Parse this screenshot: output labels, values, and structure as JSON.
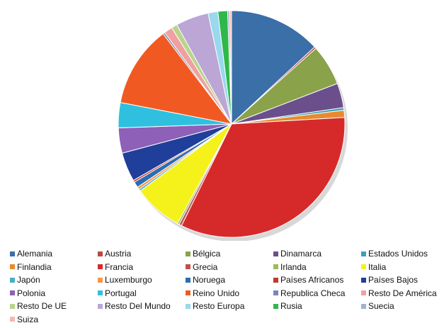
{
  "chart_data": {
    "type": "pie",
    "start_angle_deg": 0,
    "direction": "clockwise",
    "legend_position": "bottom",
    "slices": [
      {
        "label": "Alemania",
        "value": 14.2,
        "color": "#3a6fa8"
      },
      {
        "label": "Austria",
        "value": 0.3,
        "color": "#b84a46"
      },
      {
        "label": "Bélgica",
        "value": 6.3,
        "color": "#8aa24a"
      },
      {
        "label": "Dinamarca",
        "value": 3.8,
        "color": "#6b4f8c"
      },
      {
        "label": "Estados Unidos",
        "value": 0.4,
        "color": "#3aa0b8"
      },
      {
        "label": "Finlandia",
        "value": 1.1,
        "color": "#e88a2e"
      },
      {
        "label": "Francia",
        "value": 36.0,
        "color": "#d62a2a"
      },
      {
        "label": "Grecia",
        "value": 0.4,
        "color": "#c0504d"
      },
      {
        "label": "Irlanda",
        "value": 0.3,
        "color": "#9bbb59"
      },
      {
        "label": "Italia",
        "value": 7.6,
        "color": "#f4f21a"
      },
      {
        "label": "Japón",
        "value": 0.3,
        "color": "#4bacc6"
      },
      {
        "label": "Luxemburgo",
        "value": 0.4,
        "color": "#f79646"
      },
      {
        "label": "Noruega",
        "value": 0.9,
        "color": "#2c6db0"
      },
      {
        "label": "Países Africanos",
        "value": 0.3,
        "color": "#c0392b"
      },
      {
        "label": "Países Bajos",
        "value": 4.5,
        "color": "#1f3f9a"
      },
      {
        "label": "Polonia",
        "value": 3.9,
        "color": "#8e60b8"
      },
      {
        "label": "Portugal",
        "value": 3.9,
        "color": "#2fc0e0"
      },
      {
        "label": "Reino Unido",
        "value": 12.6,
        "color": "#f05a22"
      },
      {
        "label": "Republica Checa",
        "value": 0.3,
        "color": "#7b86b8"
      },
      {
        "label": "Resto De América",
        "value": 1.3,
        "color": "#f0a0a0"
      },
      {
        "label": "Resto De UE",
        "value": 0.9,
        "color": "#b8d48a"
      },
      {
        "label": "Resto Del Mundo",
        "value": 5.1,
        "color": "#bba6d6"
      },
      {
        "label": "Resto Europa",
        "value": 1.5,
        "color": "#9ad8ee"
      },
      {
        "label": "Rusia",
        "value": 1.5,
        "color": "#2fb84a"
      },
      {
        "label": "Suecia",
        "value": 0.3,
        "color": "#9fb4cc"
      },
      {
        "label": "Suiza",
        "value": 0.3,
        "color": "#f4b8b0"
      }
    ]
  }
}
